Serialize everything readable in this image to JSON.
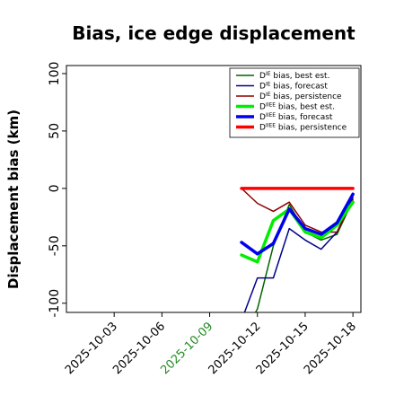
{
  "chart_data": {
    "type": "line",
    "title": "Bias, ice edge displacement",
    "ylabel": "Displacement bias (km)",
    "xlabel": "",
    "ylim": [
      -108,
      107
    ],
    "xlim": [
      "2025-09-30",
      "2025-10-18.5"
    ],
    "yticks": [
      100,
      50,
      0,
      -50,
      -100
    ],
    "xticks": [
      {
        "date": "2025-10-03",
        "label": "2025-10-03",
        "color": "#000000"
      },
      {
        "date": "2025-10-06",
        "label": "2025-10-06",
        "color": "#000000"
      },
      {
        "date": "2025-10-09",
        "label": "2025-10-09",
        "color": "#228B22"
      },
      {
        "date": "2025-10-12",
        "label": "2025-10-12",
        "color": "#000000"
      },
      {
        "date": "2025-10-15",
        "label": "2025-10-15",
        "color": "#000000"
      },
      {
        "date": "2025-10-18",
        "label": "2025-10-18",
        "color": "#000000"
      }
    ],
    "grid": false,
    "legend_position": "top-right",
    "series": [
      {
        "name": "D^IE bias, best est.",
        "color": "#006400",
        "width": 1.5,
        "x": [
          "2025-10-11",
          "2025-10-12",
          "2025-10-13",
          "2025-10-14",
          "2025-10-15",
          "2025-10-16",
          "2025-10-17",
          "2025-10-18"
        ],
        "y": [
          -130,
          -105,
          -50,
          -14,
          -38,
          -45,
          -40,
          -10
        ]
      },
      {
        "name": "D^IE bias, forecast",
        "color": "#00008B",
        "width": 1.5,
        "x": [
          "2025-10-11",
          "2025-10-12",
          "2025-10-13",
          "2025-10-14",
          "2025-10-15",
          "2025-10-16",
          "2025-10-17",
          "2025-10-18"
        ],
        "y": [
          -115,
          -78,
          -78,
          -35,
          -45,
          -53,
          -38,
          -8
        ]
      },
      {
        "name": "D^IE bias, persistence",
        "color": "#8B0000",
        "width": 1.5,
        "x": [
          "2025-10-11",
          "2025-10-12",
          "2025-10-13",
          "2025-10-14",
          "2025-10-15",
          "2025-10-16",
          "2025-10-17",
          "2025-10-18"
        ],
        "y": [
          0,
          -13,
          -20,
          -12,
          -32,
          -38,
          -38,
          -10
        ]
      },
      {
        "name": "D^IIEE bias, best est.",
        "color": "#00EE00",
        "width": 3.5,
        "x": [
          "2025-10-11",
          "2025-10-12",
          "2025-10-13",
          "2025-10-14",
          "2025-10-15",
          "2025-10-16",
          "2025-10-17",
          "2025-10-18"
        ],
        "y": [
          -58,
          -64,
          -28,
          -18,
          -38,
          -43,
          -32,
          -12
        ]
      },
      {
        "name": "D^IIEE bias, forecast",
        "color": "#0000EE",
        "width": 3.5,
        "x": [
          "2025-10-11",
          "2025-10-12",
          "2025-10-13",
          "2025-10-14",
          "2025-10-15",
          "2025-10-16",
          "2025-10-17",
          "2025-10-18"
        ],
        "y": [
          -47,
          -57,
          -48,
          -18,
          -35,
          -40,
          -30,
          -5
        ]
      },
      {
        "name": "D^IIEE bias, persistence",
        "color": "#FF0000",
        "width": 3.5,
        "x": [
          "2025-10-11",
          "2025-10-12",
          "2025-10-13",
          "2025-10-14",
          "2025-10-15",
          "2025-10-16",
          "2025-10-17",
          "2025-10-18"
        ],
        "y": [
          0,
          0,
          0,
          0,
          0,
          0,
          0,
          0
        ]
      }
    ]
  }
}
